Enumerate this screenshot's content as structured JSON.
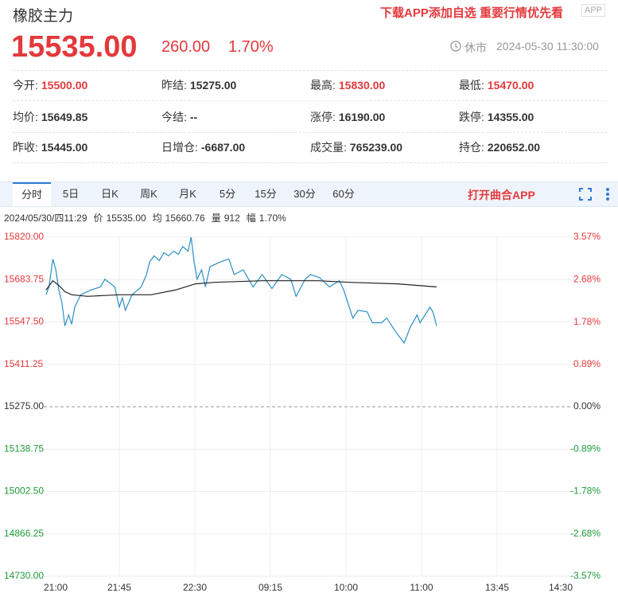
{
  "header": {
    "title": "橡胶主力",
    "promo": "下载APP添加自选 重要行情优先看",
    "badge": "APP",
    "price": "15535.00",
    "change": "260.00",
    "change_pct": "1.70%",
    "status": "休市",
    "time": "2024-05-30 11:30:00"
  },
  "stats": [
    [
      {
        "label": "今开:",
        "value": "15500.00",
        "color": "#e4393c"
      },
      {
        "label": "昨结:",
        "value": "15275.00"
      },
      {
        "label": "最高:",
        "value": "15830.00",
        "color": "#e4393c"
      },
      {
        "label": "最低:",
        "value": "15470.00",
        "color": "#e4393c"
      }
    ],
    [
      {
        "label": "均价:",
        "value": "15649.85"
      },
      {
        "label": "今结:",
        "value": "--"
      },
      {
        "label": "涨停:",
        "value": "16190.00"
      },
      {
        "label": "跌停:",
        "value": "14355.00"
      }
    ],
    [
      {
        "label": "昨收:",
        "value": "15445.00"
      },
      {
        "label": "日增仓:",
        "value": "-6687.00"
      },
      {
        "label": "成交量:",
        "value": "765239.00"
      },
      {
        "label": "持仓:",
        "value": "220652.00"
      }
    ]
  ],
  "tabs": [
    "分时",
    "5日",
    "日K",
    "周K",
    "月K",
    "5分",
    "15分",
    "30分",
    "60分"
  ],
  "open_app": "打开曲合APP",
  "info": [
    "2024/05/30/四11:29",
    "价",
    "15535.00",
    "均",
    "15660.76",
    "量",
    "912",
    "幅",
    "1.70%"
  ],
  "chart_data": {
    "type": "line",
    "xlim": [
      0,
      7
    ],
    "xticks": [
      {
        "value": 0,
        "label": "21:00"
      },
      {
        "value": 1,
        "label": "21:45"
      },
      {
        "value": 2,
        "label": "22:30"
      },
      {
        "value": 3,
        "label": "09:15"
      },
      {
        "value": 4,
        "label": "10:00"
      },
      {
        "value": 5,
        "label": "11:00"
      },
      {
        "value": 6,
        "label": "13:45"
      },
      {
        "value": 7,
        "label": "14:30"
      }
    ],
    "ylim": [
      14730,
      15820
    ],
    "yticks": [
      {
        "value": 15820,
        "label": "15820.00"
      },
      {
        "value": 15683.75,
        "label": "15683.75"
      },
      {
        "value": 15547.5,
        "label": "15547.50"
      },
      {
        "value": 15411.25,
        "label": "15411.25"
      },
      {
        "value": 15275,
        "label": "15275.00"
      },
      {
        "value": 15138.75,
        "label": "15138.75"
      },
      {
        "value": 15002.5,
        "label": "15002.50"
      },
      {
        "value": 14866.25,
        "label": "14866.25"
      },
      {
        "value": 14730,
        "label": "14730.00"
      }
    ],
    "y2lim": [
      -3.57,
      3.57
    ],
    "y2ticks": [
      {
        "value": 3.57,
        "label": "3.57%"
      },
      {
        "value": 2.68,
        "label": "2.68%"
      },
      {
        "value": 1.78,
        "label": "1.78%"
      },
      {
        "value": 0.89,
        "label": "0.89%"
      },
      {
        "value": 0,
        "label": "0.00%"
      },
      {
        "value": -0.89,
        "label": "-0.89%"
      },
      {
        "value": -1.78,
        "label": "-1.78%"
      },
      {
        "value": -2.68,
        "label": "-2.68%"
      },
      {
        "value": -3.57,
        "label": "-3.57%"
      }
    ],
    "grid": true,
    "series": [
      {
        "color": "#2b8fc7",
        "x": [
          0.03,
          0.07,
          0.12,
          0.16,
          0.2,
          0.24,
          0.28,
          0.33,
          0.37,
          0.41,
          0.49,
          0.62,
          0.75,
          0.81,
          0.94,
          1.0,
          1.04,
          1.08,
          1.17,
          1.29,
          1.36,
          1.4,
          1.46,
          1.53,
          1.59,
          1.65,
          1.72,
          1.78,
          1.84,
          1.91,
          1.95,
          1.99,
          2.03,
          2.09,
          2.14,
          2.2,
          2.33,
          2.45,
          2.52,
          2.64,
          2.77,
          2.89,
          3.02,
          3.15,
          3.27,
          3.34,
          3.46,
          3.53,
          3.65,
          3.78,
          3.91,
          3.97,
          4.09,
          4.16,
          4.28,
          4.35,
          4.47,
          4.54,
          4.66,
          4.77,
          4.85,
          4.94,
          4.98,
          5.11,
          5.15,
          5.2
        ],
        "values": [
          15635,
          15660,
          15750,
          15715,
          15650,
          15610,
          15535,
          15570,
          15540,
          15595,
          15635,
          15650,
          15660,
          15685,
          15660,
          15595,
          15625,
          15585,
          15635,
          15660,
          15700,
          15740,
          15760,
          15745,
          15770,
          15760,
          15775,
          15765,
          15790,
          15775,
          15820,
          15740,
          15685,
          15715,
          15660,
          15725,
          15740,
          15750,
          15700,
          15715,
          15660,
          15700,
          15655,
          15700,
          15685,
          15630,
          15685,
          15700,
          15690,
          15660,
          15680,
          15650,
          15560,
          15585,
          15580,
          15545,
          15545,
          15560,
          15515,
          15480,
          15530,
          15570,
          15545,
          15595,
          15580,
          15535
        ]
      },
      {
        "color": "#222222",
        "x": [
          0.03,
          0.12,
          0.2,
          0.28,
          0.37,
          0.58,
          1.0,
          1.42,
          1.74,
          2.01,
          2.26,
          2.89,
          3.63,
          4.05,
          4.68,
          5.2
        ],
        "values": [
          15650,
          15680,
          15665,
          15645,
          15635,
          15630,
          15635,
          15635,
          15650,
          15670,
          15675,
          15680,
          15680,
          15675,
          15670,
          15660
        ]
      }
    ]
  }
}
